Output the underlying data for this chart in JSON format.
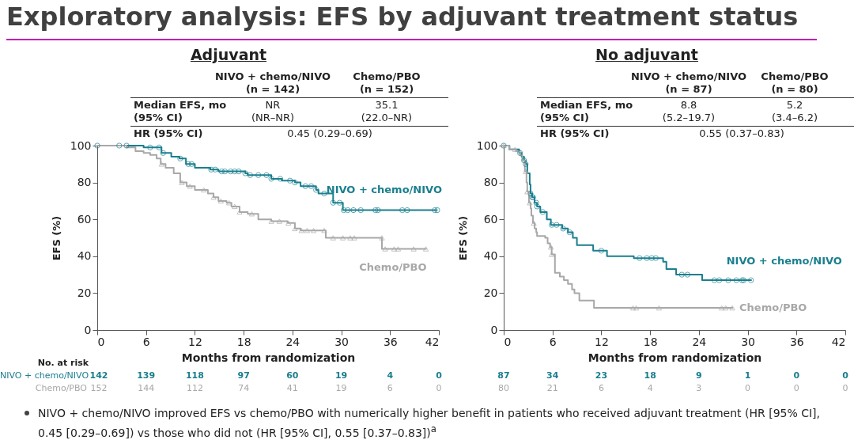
{
  "chart_data": [
    {
      "type": "step",
      "title": "Adjuvant",
      "xlabel": "Months from randomization",
      "ylabel": "EFS (%)",
      "xlim": [
        0,
        42
      ],
      "xticks": [
        0,
        6,
        12,
        18,
        24,
        30,
        36,
        42
      ],
      "ylim": [
        0,
        100
      ],
      "yticks": [
        0,
        20,
        40,
        60,
        80,
        100
      ],
      "series": [
        {
          "name": "NIVO + chemo/NIVO",
          "color": "#1a7f8e",
          "x": [
            0,
            5.7,
            7.9,
            9.1,
            10.1,
            10.9,
            12,
            13.9,
            14.9,
            18.2,
            18.5,
            21.4,
            22.7,
            24.3,
            25,
            26.9,
            27.2,
            29,
            30.2,
            41.8
          ],
          "values": [
            100,
            99,
            96,
            94,
            93,
            90,
            88,
            87,
            86,
            85,
            84,
            82,
            81,
            80,
            78,
            76,
            74,
            69,
            65,
            65
          ]
        },
        {
          "name": "Chemo/PBO",
          "color": "#a8a8a8",
          "x": [
            0,
            3.6,
            4.7,
            5.7,
            6.5,
            7.3,
            7.8,
            8.4,
            9.4,
            10.2,
            11,
            12,
            13.6,
            14.3,
            14.9,
            15.9,
            16.5,
            17.5,
            18.5,
            19.8,
            21.4,
            23.4,
            24.3,
            25,
            28.1,
            35,
            40.5
          ],
          "values": [
            100,
            99,
            97,
            96,
            95,
            93,
            90,
            88,
            85,
            80,
            78,
            76,
            74,
            72,
            70,
            69,
            67,
            64,
            63,
            60,
            59,
            58,
            55,
            54,
            50,
            44,
            44
          ]
        },
        {
          "type": "scatter",
          "marker": "circle",
          "color": "#1a7f8e",
          "x": [
            0,
            2.7,
            3.6,
            6.5,
            7.6,
            8.1,
            10.2,
            11.2,
            11.6,
            14,
            14.5,
            15.3,
            15.7,
            16.4,
            16.9,
            17.4,
            18.2,
            18.8,
            19.8,
            20.8,
            21.4,
            22.5,
            23.7,
            24.3,
            25.6,
            26.3,
            26.9,
            27.9,
            29,
            29.8,
            30.3,
            30.8,
            31.5,
            32.4,
            34.2,
            34.5,
            37.5,
            38.1,
            41.5,
            41.8
          ],
          "values": [
            100,
            100,
            100,
            99,
            99,
            96,
            93,
            90,
            90,
            87,
            87,
            86,
            86,
            86,
            86,
            86,
            85,
            84,
            84,
            84,
            82,
            82,
            81,
            80,
            78,
            78,
            76,
            74,
            69,
            69,
            65,
            65,
            65,
            65,
            65,
            65,
            65,
            65,
            65,
            65
          ]
        },
        {
          "type": "scatter",
          "marker": "triangle",
          "color": "#a8a8a8",
          "x": [
            7.9,
            10.4,
            11.4,
            13.1,
            14.3,
            15.2,
            16.2,
            16.9,
            17.5,
            19,
            21.4,
            22.4,
            23.5,
            24.3,
            25.1,
            25.8,
            26.6,
            27.9,
            29,
            30.2,
            31.1,
            31.6,
            35,
            35.4,
            36.5,
            37,
            38.9,
            40.4
          ],
          "values": [
            90,
            80,
            78,
            76,
            72,
            70,
            69,
            67,
            64,
            63,
            59,
            59,
            58,
            55,
            54,
            54,
            54,
            54,
            50,
            50,
            50,
            50,
            50,
            44,
            44,
            44,
            44,
            44
          ]
        }
      ],
      "annotations": [
        "NIVO + chemo/NIVO",
        "(n = 142)",
        "Chemo/PBO",
        "(n = 152)",
        "Median EFS, mo",
        "(95% CI)",
        "NR",
        "(NR–NR)",
        "35.1",
        "(22.0–NR)",
        "HR (95% CI)",
        "0.45 (0.29–0.69)",
        "No. at risk",
        "NIVO + chemo/NIVO",
        "Chemo/PBO",
        "142",
        "139",
        "118",
        "97",
        "60",
        "19",
        "4",
        "0",
        "152",
        "144",
        "112",
        "74",
        "41",
        "19",
        "6",
        "0",
        "Exploratory analysis: EFS by adjuvant treatment status",
        "NIVO + chemo/NIVO improved EFS vs chemo/PBO with numerically higher benefit in patients who received adjuvant treatment (HR [95% CI], 0.45 [0.29–0.69]) vs those who did not (HR [95% CI], 0.55 [0.37–0.83])$^{a}$"
      ]
    },
    {
      "type": "step",
      "title": "No adjuvant",
      "xlabel": "Months from randomization",
      "ylabel": "EFS (%)",
      "xlim": [
        0,
        42
      ],
      "xticks": [
        0,
        6,
        12,
        18,
        24,
        30,
        36,
        42
      ],
      "ylim": [
        0,
        100
      ],
      "yticks": [
        0,
        20,
        40,
        60,
        80,
        100
      ],
      "series": [
        {
          "name": "NIVO + chemo/NIVO",
          "color": "#1a7f8e",
          "x": [
            0,
            0.7,
            1.9,
            2.2,
            2.5,
            2.7,
            2.9,
            3.2,
            3.3,
            3.5,
            3.8,
            4.1,
            4.5,
            5.3,
            5.8,
            7.2,
            7.9,
            8.5,
            9,
            11,
            12.7,
            16,
            19.6,
            20,
            21.2,
            24.4,
            30.5
          ],
          "values": [
            100,
            98,
            96,
            94,
            92,
            90,
            85,
            79,
            74,
            72,
            69,
            67,
            64,
            60,
            57,
            55,
            53,
            50,
            46,
            43,
            40,
            39,
            37,
            33,
            30,
            27,
            27
          ]
        },
        {
          "name": "Chemo/PBO",
          "color": "#a8a8a8",
          "x": [
            0,
            0.7,
            1.5,
            2,
            2.3,
            2.6,
            2.8,
            2.9,
            3.1,
            3.3,
            3.4,
            3.6,
            3.8,
            4,
            4.1,
            5.1,
            5.4,
            5.7,
            5.9,
            6.3,
            6.9,
            7.4,
            7.9,
            8.4,
            8.7,
            9.3,
            11.1,
            28.2
          ],
          "values": [
            100,
            98,
            97,
            95,
            92,
            86,
            80,
            75,
            69,
            66,
            62,
            58,
            55,
            53,
            51,
            50,
            47,
            45,
            41,
            31,
            29,
            27,
            25,
            22,
            20,
            16,
            12,
            12
          ]
        },
        {
          "type": "scatter",
          "marker": "circle",
          "color": "#1a7f8e",
          "x": [
            0,
            2,
            2.5,
            2.7,
            3.3,
            3.5,
            3.6,
            4,
            4.1,
            4.8,
            5.9,
            6.5,
            7.3,
            8.1,
            12,
            16.7,
            17.6,
            18.2,
            18.7,
            21.9,
            22.6,
            25.9,
            26.5,
            27.6,
            28.6,
            29.3,
            29.5,
            30.4
          ],
          "values": [
            100,
            96,
            92,
            90,
            74,
            72,
            72,
            69,
            67,
            64,
            57,
            57,
            55,
            53,
            43,
            39,
            39,
            39,
            39,
            30,
            30,
            27,
            27,
            27,
            27,
            27,
            27,
            27
          ]
        },
        {
          "type": "scatter",
          "marker": "triangle",
          "color": "#a8a8a8",
          "x": [
            0,
            1.4,
            2.7,
            2.9,
            3.2,
            3.7,
            5.8,
            5.9,
            15.9,
            16.3,
            19.1,
            26.8,
            27.3,
            28.1
          ],
          "values": [
            100,
            98,
            86,
            75,
            69,
            58,
            45,
            41,
            12,
            12,
            12,
            12,
            12,
            12
          ]
        }
      ],
      "annotations": [
        "NIVO + chemo/NIVO",
        "(n = 87)",
        "Chemo/PBO",
        "(n = 80)",
        "Median EFS, mo",
        "(95% CI)",
        "8.8",
        "(5.2–19.7)",
        "5.2",
        "(3.4–6.2)",
        "HR (95% CI)",
        "0.55 (0.37–0.83)",
        "87",
        "34",
        "23",
        "18",
        "9",
        "1",
        "0",
        "0",
        "80",
        "21",
        "6",
        "4",
        "3",
        "0",
        "0",
        "0"
      ]
    }
  ]
}
